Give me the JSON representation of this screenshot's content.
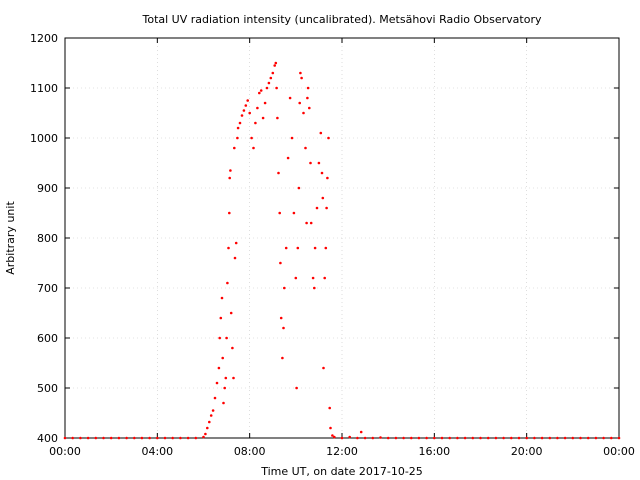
{
  "chart_data": {
    "type": "scatter",
    "title": "Total UV radiation intensity (uncalibrated). Metsähovi Radio Observatory",
    "xlabel": "Time UT, on date 2017-10-25",
    "ylabel": "Arbitrary unit",
    "xlim": [
      "00:00",
      "24:00"
    ],
    "ylim": [
      400,
      1200
    ],
    "x_ticks": [
      "00:00",
      "04:00",
      "08:00",
      "12:00",
      "16:00",
      "20:00",
      "00:00"
    ],
    "y_ticks": [
      400,
      500,
      600,
      700,
      800,
      900,
      1000,
      1100,
      1200
    ],
    "grid": true,
    "marker_color": "#ff0000",
    "series": [
      {
        "points": [
          [
            "00:00",
            400
          ],
          [
            "00:20",
            400
          ],
          [
            "00:40",
            400
          ],
          [
            "01:00",
            400
          ],
          [
            "01:20",
            400
          ],
          [
            "01:40",
            400
          ],
          [
            "02:00",
            400
          ],
          [
            "02:20",
            400
          ],
          [
            "02:40",
            400
          ],
          [
            "03:00",
            400
          ],
          [
            "03:20",
            400
          ],
          [
            "03:40",
            400
          ],
          [
            "04:00",
            400
          ],
          [
            "04:20",
            400
          ],
          [
            "04:40",
            400
          ],
          [
            "05:00",
            400
          ],
          [
            "05:20",
            400
          ],
          [
            "05:40",
            400
          ],
          [
            "06:00",
            402
          ],
          [
            "06:05",
            408
          ],
          [
            "06:10",
            420
          ],
          [
            "06:15",
            432
          ],
          [
            "06:20",
            445
          ],
          [
            "06:25",
            455
          ],
          [
            "06:30",
            480
          ],
          [
            "06:35",
            510
          ],
          [
            "06:40",
            540
          ],
          [
            "06:42",
            600
          ],
          [
            "06:45",
            640
          ],
          [
            "06:48",
            680
          ],
          [
            "06:50",
            560
          ],
          [
            "06:52",
            470
          ],
          [
            "06:55",
            500
          ],
          [
            "06:58",
            520
          ],
          [
            "07:00",
            600
          ],
          [
            "07:02",
            710
          ],
          [
            "07:05",
            780
          ],
          [
            "07:07",
            850
          ],
          [
            "07:08",
            920
          ],
          [
            "07:10",
            935
          ],
          [
            "07:12",
            650
          ],
          [
            "07:15",
            580
          ],
          [
            "07:18",
            520
          ],
          [
            "07:20",
            980
          ],
          [
            "07:22",
            760
          ],
          [
            "07:25",
            790
          ],
          [
            "07:28",
            1000
          ],
          [
            "07:30",
            1020
          ],
          [
            "07:35",
            1030
          ],
          [
            "07:40",
            1045
          ],
          [
            "07:45",
            1055
          ],
          [
            "07:50",
            1065
          ],
          [
            "07:55",
            1075
          ],
          [
            "08:00",
            1050
          ],
          [
            "08:05",
            1000
          ],
          [
            "08:10",
            980
          ],
          [
            "08:15",
            1030
          ],
          [
            "08:20",
            1060
          ],
          [
            "08:25",
            1090
          ],
          [
            "08:30",
            1095
          ],
          [
            "08:35",
            1040
          ],
          [
            "08:40",
            1070
          ],
          [
            "08:45",
            1100
          ],
          [
            "08:50",
            1110
          ],
          [
            "08:55",
            1120
          ],
          [
            "09:00",
            1130
          ],
          [
            "09:05",
            1145
          ],
          [
            "09:08",
            1150
          ],
          [
            "09:10",
            1100
          ],
          [
            "09:12",
            1040
          ],
          [
            "09:15",
            930
          ],
          [
            "09:18",
            850
          ],
          [
            "09:20",
            750
          ],
          [
            "09:22",
            640
          ],
          [
            "09:25",
            560
          ],
          [
            "09:28",
            620
          ],
          [
            "09:30",
            700
          ],
          [
            "09:35",
            780
          ],
          [
            "09:40",
            960
          ],
          [
            "09:45",
            1080
          ],
          [
            "09:50",
            1000
          ],
          [
            "09:55",
            850
          ],
          [
            "10:00",
            720
          ],
          [
            "10:02",
            500
          ],
          [
            "10:05",
            780
          ],
          [
            "10:08",
            900
          ],
          [
            "10:10",
            1070
          ],
          [
            "10:12",
            1130
          ],
          [
            "10:15",
            1120
          ],
          [
            "10:20",
            1050
          ],
          [
            "10:25",
            980
          ],
          [
            "10:28",
            830
          ],
          [
            "10:30",
            1080
          ],
          [
            "10:32",
            1100
          ],
          [
            "10:35",
            1060
          ],
          [
            "10:38",
            950
          ],
          [
            "10:40",
            830
          ],
          [
            "10:45",
            720
          ],
          [
            "10:48",
            700
          ],
          [
            "10:50",
            780
          ],
          [
            "10:55",
            860
          ],
          [
            "11:00",
            950
          ],
          [
            "11:05",
            1010
          ],
          [
            "11:08",
            930
          ],
          [
            "11:10",
            880
          ],
          [
            "11:12",
            540
          ],
          [
            "11:15",
            720
          ],
          [
            "11:18",
            780
          ],
          [
            "11:20",
            860
          ],
          [
            "11:22",
            920
          ],
          [
            "11:25",
            1000
          ],
          [
            "11:28",
            460
          ],
          [
            "11:30",
            420
          ],
          [
            "11:35",
            405
          ],
          [
            "11:40",
            402
          ],
          [
            "12:00",
            400
          ],
          [
            "12:20",
            402
          ],
          [
            "12:40",
            400
          ],
          [
            "12:50",
            412
          ],
          [
            "13:00",
            400
          ],
          [
            "13:20",
            400
          ],
          [
            "13:40",
            401
          ],
          [
            "14:00",
            400
          ],
          [
            "14:20",
            400
          ],
          [
            "14:40",
            400
          ],
          [
            "15:00",
            400
          ],
          [
            "15:20",
            400
          ],
          [
            "15:40",
            400
          ],
          [
            "16:00",
            400
          ],
          [
            "16:20",
            400
          ],
          [
            "16:40",
            400
          ],
          [
            "17:00",
            400
          ],
          [
            "17:20",
            400
          ],
          [
            "17:40",
            400
          ],
          [
            "18:00",
            400
          ],
          [
            "18:20",
            400
          ],
          [
            "18:40",
            400
          ],
          [
            "19:00",
            400
          ],
          [
            "19:20",
            400
          ],
          [
            "19:40",
            400
          ],
          [
            "20:00",
            400
          ],
          [
            "20:20",
            400
          ],
          [
            "20:40",
            400
          ],
          [
            "21:00",
            400
          ],
          [
            "21:20",
            400
          ],
          [
            "21:40",
            400
          ],
          [
            "22:00",
            400
          ],
          [
            "22:20",
            400
          ],
          [
            "22:40",
            400
          ],
          [
            "23:00",
            400
          ],
          [
            "23:20",
            400
          ],
          [
            "23:40",
            400
          ],
          [
            "24:00",
            400
          ]
        ]
      }
    ]
  }
}
